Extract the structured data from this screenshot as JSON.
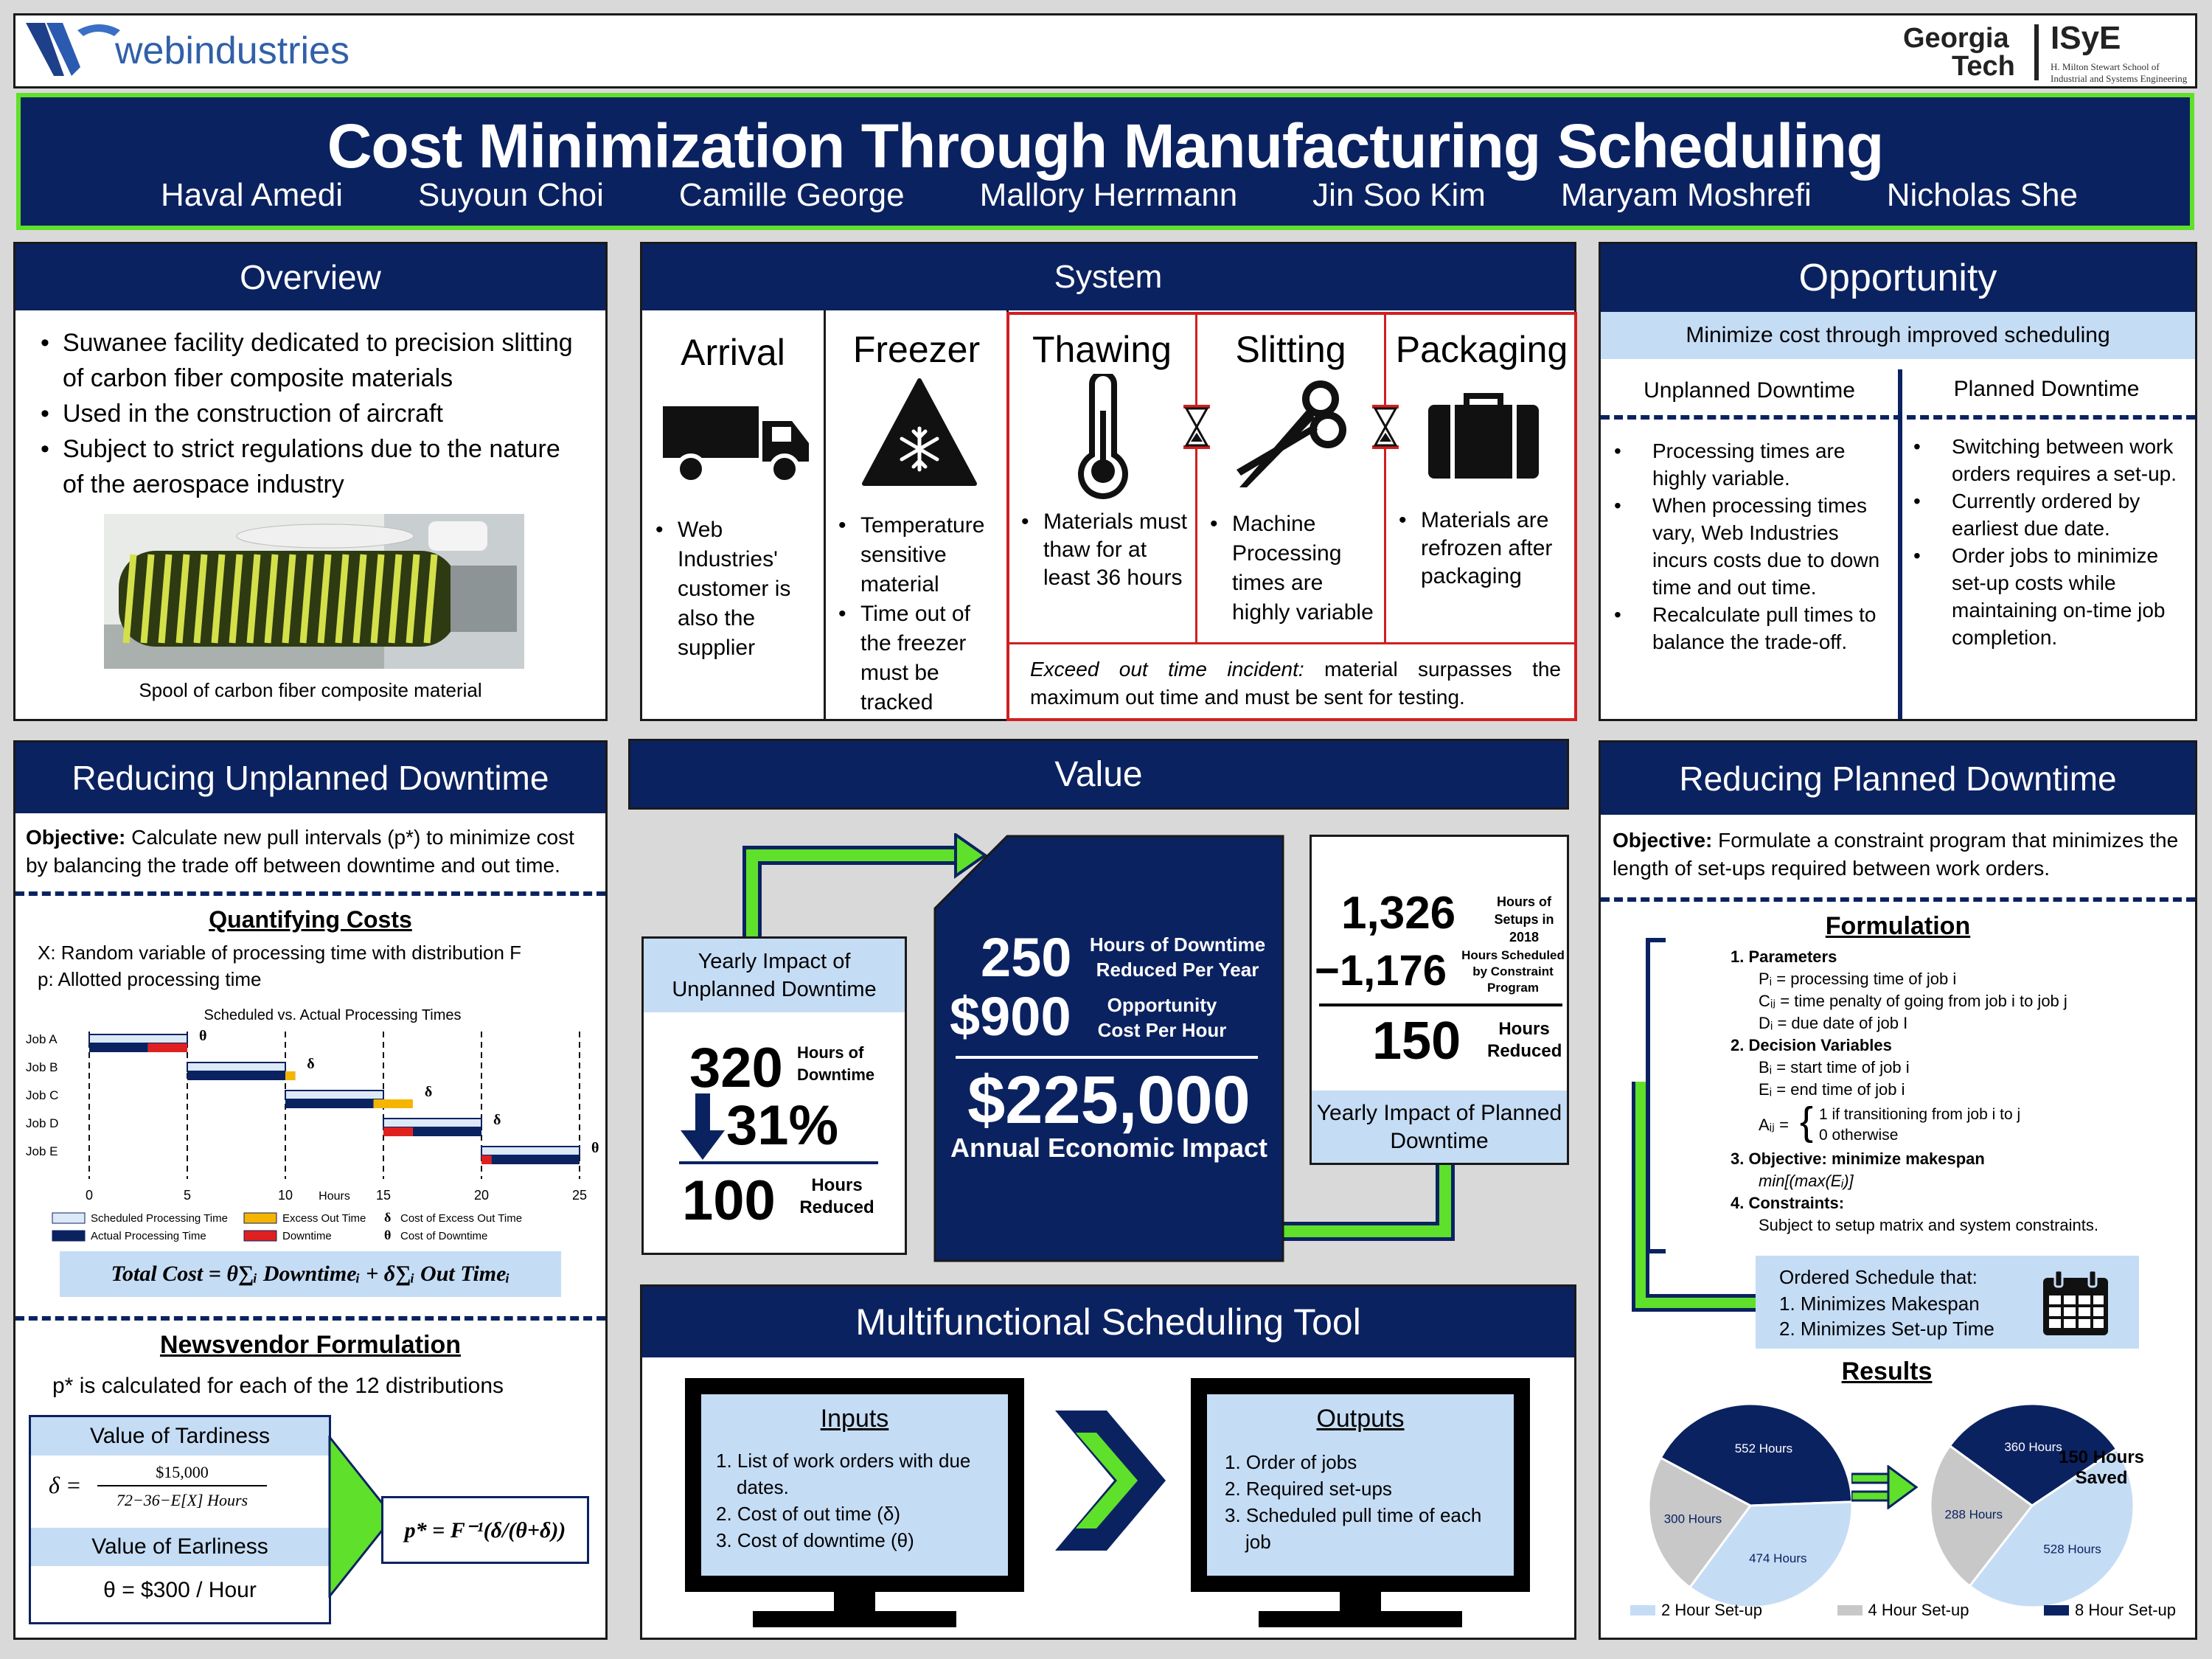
{
  "header": {
    "logo_text": "webindustries",
    "gt_line1": "Georgia",
    "gt_line2": "Tech",
    "isye": "ISyE",
    "isye_sub1": "H. Milton Stewart School of",
    "isye_sub2": "Industrial and Systems Engineering"
  },
  "title": {
    "main": "Cost Minimization Through Manufacturing Scheduling",
    "authors": [
      "Haval Amedi",
      "Suyoun Choi",
      "Camille George",
      "Mallory Herrmann",
      "Jin Soo Kim",
      "Maryam Moshrefi",
      "Nicholas She"
    ]
  },
  "overview": {
    "title": "Overview",
    "bullets": [
      "Suwanee facility dedicated to precision slitting of carbon fiber composite materials",
      "Used in the construction of aircraft",
      "Subject to strict regulations due to the nature of the aerospace industry"
    ],
    "caption": "Spool of carbon fiber composite material"
  },
  "system": {
    "title": "System",
    "stages": [
      {
        "name": "Arrival",
        "icon": "truck-icon",
        "bullets": [
          "Web Industries' customer is also the supplier"
        ]
      },
      {
        "name": "Freezer",
        "icon": "snowflake-warning-icon",
        "bullets": [
          "Temperature sensitive material",
          "Time out of the freezer must be tracked"
        ]
      },
      {
        "name": "Thawing",
        "icon": "thermometer-icon",
        "bullets": [
          "Materials must thaw for at least 36 hours"
        ]
      },
      {
        "name": "Slitting",
        "icon": "scissors-icon",
        "bullets": [
          "Machine Processing times are highly variable"
        ]
      },
      {
        "name": "Packaging",
        "icon": "briefcase-icon",
        "bullets": [
          "Materials are refrozen after packaging"
        ]
      }
    ],
    "incident_label": "Exceed out time incident:",
    "incident_text": " material surpasses the maximum out time and must be sent for testing."
  },
  "opportunity": {
    "title": "Opportunity",
    "subtitle": "Minimize cost through improved scheduling",
    "col1_title": "Unplanned Downtime",
    "col2_title": "Planned Downtime",
    "col1_bullets": [
      "Processing times are highly variable.",
      "When processing times vary, Web Industries incurs costs due to down time and out time.",
      "Recalculate pull times to balance the trade-off."
    ],
    "col2_bullets": [
      "Switching between work orders requires a set-up.",
      "Currently ordered by earliest due date.",
      "Order jobs to minimize set-up costs while maintaining on-time job completion."
    ]
  },
  "unplanned": {
    "title": "Reducing Unplanned Downtime",
    "objective_label": "Objective:",
    "objective_text": " Calculate new pull intervals (p*) to minimize cost by balancing the trade off between downtime and out time.",
    "quant_title": "Quantifying Costs",
    "def_x": "X: Random variable of processing time with distribution F",
    "def_p": "p: Allotted processing time",
    "total_cost": "Total Cost = θ∑ᵢ Downtimeᵢ + δ∑ᵢ Out Timeᵢ",
    "news_title": "Newsvendor Formulation",
    "news_text": "p* is calculated for each of the 12 distributions",
    "tard_title": "Value of Tardiness",
    "tard_delta": "δ =",
    "tard_num": "$15,000",
    "tard_den": "72−36−E[X] Hours",
    "early_title": "Value of Earliness",
    "early_value": "θ = $300 / Hour",
    "pstar": "p* = F⁻¹(δ/(θ+δ))"
  },
  "chart_data": {
    "type": "bar",
    "title": "Scheduled vs. Actual Processing Times",
    "xlabel": "Hours",
    "xlim": [
      0,
      25
    ],
    "xticks": [
      0,
      5,
      10,
      15,
      20,
      25
    ],
    "categories": [
      "Job A",
      "Job B",
      "Job C",
      "Job D",
      "Job E"
    ],
    "series": [
      {
        "name": "Scheduled Processing Time",
        "color": "#dce9f7",
        "values": [
          [
            0,
            5
          ],
          [
            5,
            10
          ],
          [
            10,
            15
          ],
          [
            15,
            20
          ],
          [
            20,
            25
          ]
        ]
      },
      {
        "name": "Actual Processing Time",
        "color": "#0b2261",
        "values": [
          [
            0,
            3
          ],
          [
            5,
            10.5
          ],
          [
            10,
            14.5
          ],
          [
            16.5,
            20
          ],
          [
            20.5,
            25
          ]
        ]
      },
      {
        "name": "Excess Out Time",
        "color": "#f5b400",
        "values": [
          null,
          [
            10,
            10.5
          ],
          [
            14.5,
            16.5
          ],
          null,
          null
        ]
      },
      {
        "name": "Downtime",
        "color": "#e02020",
        "values": [
          [
            3,
            5
          ],
          null,
          null,
          [
            15,
            16.5
          ],
          [
            20,
            20.5
          ]
        ]
      }
    ],
    "legend_extra": [
      {
        "symbol": "δ",
        "name": "Cost of Excess Out Time"
      },
      {
        "symbol": "θ",
        "name": "Cost of Downtime"
      }
    ],
    "annotations": [
      "θ",
      "δ",
      "δ",
      "δ",
      "θ"
    ]
  },
  "value": {
    "title": "Value",
    "left_title": "Yearly Impact of Unplanned Downtime",
    "left_big1": "320",
    "left_unit1": "Hours of Downtime",
    "left_pct": "31%",
    "left_big2": "100",
    "left_unit2": "Hours Reduced",
    "center_big1": "250",
    "center_unit1": "Hours of Downtime Reduced Per Year",
    "center_big2": "$900",
    "center_unit2": "Opportunity Cost Per Hour",
    "center_total": "$225,000",
    "center_total_label": "Annual Economic Impact",
    "right_big1": "1,326",
    "right_unit1": "Hours of Setups in 2018",
    "right_big2": "−1,176",
    "right_unit2": "Hours Scheduled by Constraint Program",
    "right_big3": "150",
    "right_unit3": "Hours Reduced",
    "right_title": "Yearly Impact of Planned Downtime"
  },
  "tool": {
    "title": "Multifunctional Scheduling Tool",
    "inputs_title": "Inputs",
    "inputs": [
      "1. List of work orders with due dates.",
      "2. Cost of out time (δ)",
      "3. Cost of downtime (θ)"
    ],
    "outputs_title": "Outputs",
    "outputs": [
      "1. Order of jobs",
      "2. Required set-ups",
      "3. Scheduled pull time of each job"
    ]
  },
  "planned": {
    "title": "Reducing Planned Downtime",
    "objective_label": "Objective:",
    "objective_text": " Formulate a constraint program that minimizes the length of set-ups required between work orders.",
    "form_title": "Formulation",
    "items": [
      {
        "label": "1. Parameters",
        "lines": [
          "Pᵢ = processing time of job i",
          "Cᵢⱼ = time penalty of going from job i to job j",
          "Dᵢ = due date of job I"
        ]
      },
      {
        "label": "2. Decision Variables",
        "lines": [
          "Bᵢ = start time of job i",
          "Eᵢ = end time of job i"
        ]
      },
      {
        "label": "3. Objective: minimize makespan",
        "lines": [
          "min[(max(Eᵢ)]"
        ]
      },
      {
        "label": "4. Constraints:",
        "lines": [
          "Subject to setup matrix and system constraints."
        ]
      }
    ],
    "aij_label": "Aᵢⱼ =",
    "aij_case1": "1     if transitioning from job i to j",
    "aij_case2": "0                   otherwise",
    "ordered_title": "Ordered Schedule that:",
    "ordered_items": [
      "1.   Minimizes Makespan",
      "2.   Minimizes Set-up Time"
    ],
    "results_title": "Results",
    "pie1": [
      {
        "label": "552 Hours",
        "value": 552,
        "color": "#0b2261"
      },
      {
        "label": "474 Hours",
        "value": 474,
        "color": "#c5dcf5"
      },
      {
        "label": "300 Hours",
        "value": 300,
        "color": "#c8c8c8"
      }
    ],
    "pie2": [
      {
        "label": "360 Hours",
        "value": 360,
        "color": "#0b2261"
      },
      {
        "label": "528 Hours",
        "value": 528,
        "color": "#c5dcf5"
      },
      {
        "label": "288 Hours",
        "value": 288,
        "color": "#c8c8c8"
      }
    ],
    "saved": "150 Hours Saved",
    "legend": [
      {
        "label": "2 Hour Set-up",
        "color": "#c5dcf5"
      },
      {
        "label": "4 Hour Set-up",
        "color": "#c8c8c8"
      },
      {
        "label": "8 Hour Set-up",
        "color": "#0b2261"
      }
    ]
  }
}
